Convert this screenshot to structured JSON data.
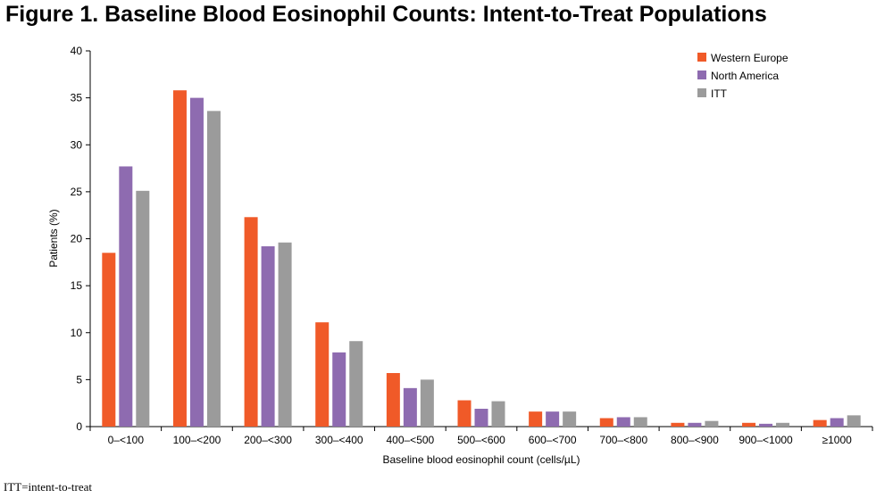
{
  "title": "Figure 1. Baseline Blood Eosinophil Counts: Intent-to-Treat Populations",
  "footnote": "ITT=intent-to-treat",
  "colors": {
    "western_europe": "#f05a28",
    "north_america": "#8e6bb0",
    "itt": "#9b9b9b"
  },
  "chart_data": {
    "type": "bar",
    "xlabel": "Baseline blood eosinophil count (cells/µL)",
    "ylabel": "Patients (%)",
    "ylim": [
      0,
      40
    ],
    "yticks": [
      0,
      5,
      10,
      15,
      20,
      25,
      30,
      35,
      40
    ],
    "grid": false,
    "legend_position": "top-right",
    "categories": [
      "0–<100",
      "100–<200",
      "200–<300",
      "300–<400",
      "400–<500",
      "500–<600",
      "600–<700",
      "700–<800",
      "800–<900",
      "900–<1000",
      "≥1000"
    ],
    "series": [
      {
        "name": "Western Europe",
        "color": "#f05a28",
        "values": [
          18.5,
          35.8,
          22.3,
          11.1,
          5.7,
          2.8,
          1.6,
          0.9,
          0.4,
          0.4,
          0.7
        ]
      },
      {
        "name": "North America",
        "color": "#8e6bb0",
        "values": [
          27.7,
          35.0,
          19.2,
          7.9,
          4.1,
          1.9,
          1.6,
          1.0,
          0.4,
          0.3,
          0.9
        ]
      },
      {
        "name": "ITT",
        "color": "#9b9b9b",
        "values": [
          25.1,
          33.6,
          19.6,
          9.1,
          5.0,
          2.7,
          1.6,
          1.0,
          0.6,
          0.4,
          1.2
        ]
      }
    ]
  }
}
